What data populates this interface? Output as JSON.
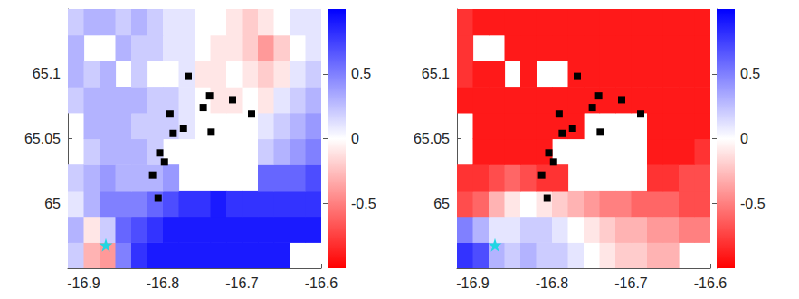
{
  "chart_data": [
    {
      "type": "heatmap",
      "xlim": [
        -16.92,
        -16.6
      ],
      "xticks": [
        -16.9,
        -16.8,
        -16.7,
        -16.6
      ],
      "ylim": [
        64.95,
        65.15
      ],
      "yticks": [
        65,
        65.05,
        65.1
      ],
      "clim": [
        -1,
        1
      ],
      "cticks": [
        -0.5,
        0,
        0.5
      ],
      "x": [
        -16.91,
        -16.89,
        -16.87,
        -16.85,
        -16.83,
        -16.81,
        -16.79,
        -16.77,
        -16.75,
        -16.73,
        -16.71,
        -16.69,
        -16.67,
        -16.65,
        -16.63,
        -16.61
      ],
      "y": [
        64.96,
        64.98,
        65.0,
        65.02,
        65.04,
        65.06,
        65.08,
        65.1,
        65.12,
        65.14
      ],
      "values": [
        [
          0.2,
          -0.3,
          -0.4,
          0.5,
          0.8,
          0.9,
          0.9,
          0.9,
          0.9,
          0.9,
          0.9,
          0.9,
          0.9,
          0.9,
          null,
          null
        ],
        [
          0.3,
          -0.1,
          0.2,
          0.6,
          0.7,
          0.8,
          0.9,
          0.9,
          0.9,
          0.9,
          0.9,
          0.9,
          0.9,
          0.9,
          0.9,
          0.9
        ],
        [
          0.1,
          0.3,
          0.5,
          0.5,
          0.5,
          0.6,
          0.7,
          0.8,
          0.8,
          0.9,
          0.8,
          0.8,
          0.8,
          0.8,
          0.8,
          0.8
        ],
        [
          0.2,
          0.3,
          0.4,
          0.3,
          0.3,
          0.3,
          0.4,
          null,
          null,
          null,
          null,
          null,
          0.6,
          0.6,
          0.6,
          0.7
        ],
        [
          null,
          0.2,
          0.3,
          0.3,
          0.3,
          0.2,
          null,
          null,
          null,
          null,
          null,
          null,
          0.2,
          0.3,
          0.4,
          0.5
        ],
        [
          null,
          0.3,
          0.3,
          0.3,
          0.2,
          0.2,
          0.2,
          0.1,
          null,
          null,
          null,
          null,
          0.1,
          0.2,
          0.3,
          0.4
        ],
        [
          0.2,
          0.3,
          0.3,
          0.3,
          0.3,
          0.2,
          0.2,
          0.1,
          0.0,
          -0.1,
          -0.1,
          0.0,
          -0.1,
          0.1,
          0.2,
          0.3
        ],
        [
          0.3,
          0.2,
          0.3,
          null,
          0.2,
          null,
          null,
          0.1,
          -0.1,
          -0.1,
          0.0,
          -0.1,
          -0.2,
          -0.1,
          0.1,
          0.2
        ],
        [
          0.3,
          null,
          null,
          0.3,
          0.2,
          0.2,
          0.1,
          0.1,
          0.0,
          -0.1,
          -0.1,
          -0.2,
          -0.4,
          -0.2,
          0.0,
          0.1
        ],
        [
          0.2,
          0.3,
          0.3,
          0.2,
          0.3,
          0.2,
          0.1,
          0.1,
          0.0,
          0.0,
          -0.1,
          -0.2,
          -0.1,
          0.0,
          0.1,
          0.1
        ]
      ],
      "markers": [
        {
          "marker": "square",
          "color": "#000000",
          "x": [
            -16.768,
            -16.741,
            -16.712,
            -16.749,
            -16.791,
            -16.688,
            -16.774,
            -16.739,
            -16.787,
            -16.804,
            -16.798,
            -16.813,
            -16.806
          ],
          "y": [
            65.098,
            65.083,
            65.08,
            65.074,
            65.069,
            65.069,
            65.058,
            65.055,
            65.054,
            65.039,
            65.032,
            65.022,
            65.004
          ]
        },
        {
          "marker": "star",
          "color": "#22d6e2",
          "x": [
            -16.872
          ],
          "y": [
            64.968
          ]
        }
      ]
    },
    {
      "type": "heatmap",
      "xlim": [
        -16.92,
        -16.6
      ],
      "xticks": [
        -16.9,
        -16.8,
        -16.7,
        -16.6
      ],
      "ylim": [
        64.95,
        65.15
      ],
      "yticks": [
        65,
        65.05,
        65.1
      ],
      "clim": [
        -1,
        1
      ],
      "cticks": [
        -0.5,
        0,
        0.5
      ],
      "x": [
        -16.91,
        -16.89,
        -16.87,
        -16.85,
        -16.83,
        -16.81,
        -16.79,
        -16.77,
        -16.75,
        -16.73,
        -16.71,
        -16.69,
        -16.67,
        -16.65,
        -16.63,
        -16.61
      ],
      "y": [
        64.96,
        64.98,
        65.0,
        65.02,
        65.04,
        65.06,
        65.08,
        65.1,
        65.12,
        65.14
      ],
      "values": [
        [
          0.8,
          0.7,
          0.3,
          0.2,
          0.3,
          0.2,
          0.2,
          0.1,
          0.0,
          -0.1,
          -0.2,
          -0.2,
          -0.3,
          -0.3,
          null,
          null
        ],
        [
          0.5,
          0.3,
          0.1,
          0.1,
          0.2,
          0.2,
          0.1,
          0.0,
          -0.1,
          -0.2,
          -0.3,
          -0.3,
          -0.4,
          -0.4,
          -0.5,
          -0.5
        ],
        [
          -0.7,
          -0.6,
          -0.3,
          -0.1,
          0.0,
          -0.1,
          -0.2,
          -0.3,
          -0.4,
          -0.5,
          -0.5,
          -0.6,
          -0.6,
          -0.6,
          -0.7,
          -0.7
        ],
        [
          -0.8,
          -0.8,
          -0.7,
          -0.6,
          -0.7,
          -0.8,
          -0.8,
          null,
          null,
          null,
          null,
          null,
          -0.8,
          -0.8,
          -0.7,
          -0.7
        ],
        [
          null,
          -0.9,
          -0.9,
          -0.9,
          -0.9,
          -0.9,
          null,
          null,
          null,
          null,
          null,
          null,
          -0.9,
          -0.9,
          -0.9,
          -0.8
        ],
        [
          null,
          -0.9,
          -0.9,
          -0.9,
          -0.9,
          -0.9,
          -0.9,
          -0.9,
          null,
          null,
          null,
          null,
          -0.9,
          -0.9,
          -0.9,
          -0.9
        ],
        [
          -0.9,
          -0.9,
          -0.9,
          -0.9,
          -0.9,
          -0.9,
          -0.9,
          -0.9,
          -0.9,
          -0.9,
          -0.9,
          -0.9,
          -0.9,
          -0.9,
          -0.9,
          -0.9
        ],
        [
          -0.8,
          -0.9,
          -0.9,
          null,
          -0.9,
          null,
          null,
          -0.9,
          -0.9,
          -0.9,
          -0.9,
          -0.9,
          -0.9,
          -0.9,
          -0.9,
          -0.9
        ],
        [
          -0.8,
          null,
          null,
          -0.9,
          -0.9,
          -0.9,
          -0.9,
          -0.9,
          -0.9,
          -0.9,
          -0.9,
          -0.9,
          -0.9,
          -0.9,
          -0.9,
          -0.9
        ],
        [
          -0.8,
          -0.9,
          -0.9,
          -0.9,
          -0.9,
          -0.9,
          -0.9,
          -0.9,
          -0.9,
          -0.9,
          -0.9,
          -0.9,
          -0.9,
          -0.9,
          -0.9,
          -0.9
        ]
      ],
      "markers": [
        {
          "marker": "square",
          "color": "#000000",
          "x": [
            -16.768,
            -16.741,
            -16.712,
            -16.749,
            -16.791,
            -16.688,
            -16.774,
            -16.739,
            -16.787,
            -16.804,
            -16.798,
            -16.813,
            -16.806
          ],
          "y": [
            65.098,
            65.083,
            65.08,
            65.074,
            65.069,
            65.069,
            65.058,
            65.055,
            65.054,
            65.039,
            65.032,
            65.022,
            65.004
          ]
        },
        {
          "marker": "star",
          "color": "#22d6e2",
          "x": [
            -16.872
          ],
          "y": [
            64.968
          ]
        }
      ]
    }
  ]
}
